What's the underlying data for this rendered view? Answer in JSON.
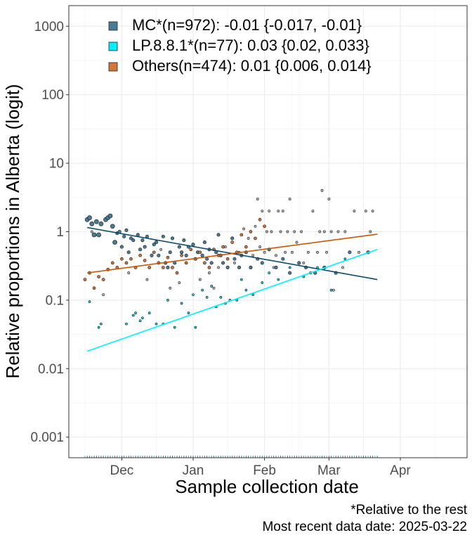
{
  "chart_data": {
    "type": "scatter",
    "title": "",
    "xlabel": "Sample collection date",
    "ylabel": "Relative proportions in Alberta (logit)",
    "y_scale": "log",
    "ylim": [
      0.0005,
      2000
    ],
    "xlim": [
      "2024-11-08",
      "2025-04-30"
    ],
    "grid": true,
    "legend_position": "top-left",
    "x_ticks": [
      {
        "date": "2024-12-01",
        "label": "Dec"
      },
      {
        "date": "2025-01-01",
        "label": "Jan"
      },
      {
        "date": "2025-02-01",
        "label": "Feb"
      },
      {
        "date": "2025-03-01",
        "label": "Mar"
      },
      {
        "date": "2025-04-01",
        "label": "Apr"
      }
    ],
    "y_ticks": [
      {
        "value": 0.001,
        "label": "0.001"
      },
      {
        "value": 0.01,
        "label": "0.01"
      },
      {
        "value": 0.1,
        "label": "0.1"
      },
      {
        "value": 1,
        "label": "1"
      },
      {
        "value": 10,
        "label": "10"
      },
      {
        "value": 100,
        "label": "100"
      },
      {
        "value": 1000,
        "label": "1000"
      }
    ],
    "series": [
      {
        "name": "MC*(n=972): -0.01 {-0.017, -0.01}",
        "color": "#4a7d96",
        "line_color": "#0d4b6e",
        "trend": [
          [
            "2024-11-16",
            1.15
          ],
          [
            "2025-03-22",
            0.2
          ]
        ],
        "points": [
          [
            "2024-11-16",
            1.5
          ],
          [
            "2024-11-17",
            1.6
          ],
          [
            "2024-11-18",
            1.3
          ],
          [
            "2024-11-19",
            0.9
          ],
          [
            "2024-11-20",
            1.4
          ],
          [
            "2024-11-21",
            0.9
          ],
          [
            "2024-11-22",
            1.3
          ],
          [
            "2024-11-24",
            1.5
          ],
          [
            "2024-11-25",
            1.6
          ],
          [
            "2024-11-26",
            1.7
          ],
          [
            "2024-11-27",
            1.2
          ],
          [
            "2024-11-28",
            0.7
          ],
          [
            "2024-11-29",
            0.95
          ],
          [
            "2024-11-30",
            1.0
          ],
          [
            "2024-12-01",
            0.6
          ],
          [
            "2024-12-02",
            0.85
          ],
          [
            "2024-12-03",
            1.05
          ],
          [
            "2024-12-04",
            0.5
          ],
          [
            "2024-12-05",
            0.8
          ],
          [
            "2024-12-06",
            0.75
          ],
          [
            "2024-12-08",
            0.9
          ],
          [
            "2024-12-09",
            0.55
          ],
          [
            "2024-12-10",
            0.75
          ],
          [
            "2024-12-11",
            0.6
          ],
          [
            "2024-12-12",
            0.85
          ],
          [
            "2024-12-14",
            0.45
          ],
          [
            "2024-12-15",
            0.65
          ],
          [
            "2024-12-16",
            0.7
          ],
          [
            "2024-12-17",
            0.45
          ],
          [
            "2024-12-19",
            0.85
          ],
          [
            "2024-12-20",
            0.35
          ],
          [
            "2024-12-21",
            0.3
          ],
          [
            "2024-12-22",
            0.5
          ],
          [
            "2024-12-23",
            0.8
          ],
          [
            "2024-12-24",
            0.35
          ],
          [
            "2024-12-26",
            0.6
          ],
          [
            "2024-12-27",
            0.5
          ],
          [
            "2024-12-28",
            0.75
          ],
          [
            "2024-12-29",
            0.45
          ],
          [
            "2024-12-30",
            0.6
          ],
          [
            "2025-01-01",
            0.65
          ],
          [
            "2025-01-02",
            0.4
          ],
          [
            "2025-01-03",
            0.5
          ],
          [
            "2025-01-05",
            0.45
          ],
          [
            "2025-01-06",
            0.7
          ],
          [
            "2025-01-07",
            0.4
          ],
          [
            "2025-01-08",
            0.55
          ],
          [
            "2025-01-09",
            0.35
          ],
          [
            "2025-01-11",
            0.5
          ],
          [
            "2025-01-12",
            0.9
          ],
          [
            "2025-01-13",
            0.45
          ],
          [
            "2025-01-14",
            0.35
          ],
          [
            "2025-01-16",
            0.3
          ],
          [
            "2025-01-18",
            0.8
          ],
          [
            "2025-01-19",
            0.4
          ],
          [
            "2025-01-21",
            0.3
          ],
          [
            "2025-01-22",
            0.45
          ],
          [
            "2025-01-24",
            0.5
          ],
          [
            "2025-01-26",
            0.3
          ],
          [
            "2025-01-29",
            0.4
          ],
          [
            "2025-01-31",
            0.35
          ],
          [
            "2025-02-03",
            0.55
          ],
          [
            "2025-02-06",
            0.3
          ],
          [
            "2025-02-09",
            0.4
          ],
          [
            "2025-02-12",
            0.25
          ],
          [
            "2025-02-16",
            0.35
          ],
          [
            "2025-02-19",
            0.3
          ],
          [
            "2025-02-23",
            0.25
          ],
          [
            "2025-02-27",
            0.3
          ],
          [
            "2025-03-04",
            0.25
          ],
          [
            "2025-03-10",
            0.5
          ],
          [
            "2025-03-18",
            0.5
          ]
        ]
      },
      {
        "name": "LP.8.8.1*(n=77): 0.03 {0.02, 0.033}",
        "color": "#00f0ff",
        "line_color": "#00f0ff",
        "trend": [
          [
            "2024-11-16",
            0.018
          ],
          [
            "2025-03-22",
            0.55
          ]
        ],
        "points": [
          [
            "2024-11-17",
            0.095
          ],
          [
            "2024-11-21",
            0.04
          ],
          [
            "2024-11-22",
            0.045
          ],
          [
            "2024-12-03",
            0.045
          ],
          [
            "2024-12-06",
            0.06
          ],
          [
            "2024-12-07",
            0.065
          ],
          [
            "2024-12-09",
            0.05
          ],
          [
            "2024-12-10",
            0.055
          ],
          [
            "2024-12-13",
            0.065
          ],
          [
            "2024-12-16",
            0.045
          ],
          [
            "2024-12-19",
            0.045
          ],
          [
            "2024-12-21",
            0.1
          ],
          [
            "2024-12-24",
            0.04
          ],
          [
            "2024-12-27",
            0.09
          ],
          [
            "2024-12-30",
            0.065
          ],
          [
            "2025-01-01",
            0.12
          ],
          [
            "2025-01-02",
            0.04
          ],
          [
            "2025-01-05",
            0.14
          ],
          [
            "2025-01-07",
            0.11
          ],
          [
            "2025-01-09",
            0.16
          ],
          [
            "2025-01-11",
            0.08
          ],
          [
            "2025-01-13",
            0.11
          ],
          [
            "2025-01-15",
            0.09
          ],
          [
            "2025-01-17",
            0.1
          ],
          [
            "2025-01-20",
            0.1
          ],
          [
            "2025-01-22",
            0.2
          ],
          [
            "2025-01-24",
            0.14
          ],
          [
            "2025-01-27",
            0.12
          ],
          [
            "2025-01-31",
            0.18
          ],
          [
            "2025-02-03",
            0.25
          ],
          [
            "2025-02-07",
            0.2
          ],
          [
            "2025-02-12",
            0.3
          ],
          [
            "2025-02-18",
            0.22
          ],
          [
            "2025-02-24",
            0.3
          ],
          [
            "2025-03-02",
            0.14
          ],
          [
            "2025-03-08",
            0.4
          ]
        ]
      },
      {
        "name": "Others(n=474): 0.01 {0.006, 0.014}",
        "color": "#d6773a",
        "line_color": "#cc5500",
        "trend": [
          [
            "2024-11-16",
            0.25
          ],
          [
            "2025-03-22",
            0.92
          ]
        ],
        "points": [
          [
            "2024-11-15",
            0.2
          ],
          [
            "2024-11-17",
            0.25
          ],
          [
            "2024-11-19",
            0.15
          ],
          [
            "2024-11-21",
            0.22
          ],
          [
            "2024-11-23",
            0.2
          ],
          [
            "2024-11-25",
            0.28
          ],
          [
            "2024-11-27",
            0.35
          ],
          [
            "2024-11-29",
            0.3
          ],
          [
            "2024-12-01",
            0.4
          ],
          [
            "2024-12-03",
            0.35
          ],
          [
            "2024-12-05",
            0.4
          ],
          [
            "2024-12-07",
            0.3
          ],
          [
            "2024-12-09",
            0.45
          ],
          [
            "2024-12-11",
            0.38
          ],
          [
            "2024-12-13",
            0.3
          ],
          [
            "2024-12-15",
            0.5
          ],
          [
            "2024-12-17",
            0.35
          ],
          [
            "2024-12-19",
            0.3
          ],
          [
            "2024-12-21",
            0.42
          ],
          [
            "2024-12-23",
            0.3
          ],
          [
            "2024-12-25",
            0.25
          ],
          [
            "2024-12-27",
            0.45
          ],
          [
            "2024-12-29",
            0.35
          ],
          [
            "2024-12-31",
            0.55
          ],
          [
            "2025-01-02",
            0.4
          ],
          [
            "2025-01-04",
            0.5
          ],
          [
            "2025-01-06",
            0.35
          ],
          [
            "2025-01-08",
            0.3
          ],
          [
            "2025-01-10",
            0.55
          ],
          [
            "2025-01-12",
            0.45
          ],
          [
            "2025-01-14",
            0.6
          ],
          [
            "2025-01-16",
            0.4
          ],
          [
            "2025-01-18",
            0.7
          ],
          [
            "2025-01-20",
            0.5
          ],
          [
            "2025-01-22",
            0.9
          ],
          [
            "2025-01-24",
            0.6
          ],
          [
            "2025-01-26",
            1.0
          ],
          [
            "2025-01-28",
            0.8
          ],
          [
            "2025-01-30",
            1.5
          ],
          [
            "2025-02-01",
            1.2
          ]
        ]
      }
    ],
    "background_points": [
      [
        "2024-11-18",
        1.0
      ],
      [
        "2024-11-23",
        0.12
      ],
      [
        "2024-12-04",
        0.25
      ],
      [
        "2024-12-12",
        0.2
      ],
      [
        "2024-12-18",
        0.55
      ],
      [
        "2024-12-22",
        0.15
      ],
      [
        "2024-12-26",
        0.18
      ],
      [
        "2025-01-04",
        0.2
      ],
      [
        "2025-01-08",
        0.25
      ],
      [
        "2025-01-10",
        0.15
      ],
      [
        "2025-01-12",
        0.3
      ],
      [
        "2025-01-15",
        0.6
      ],
      [
        "2025-01-19",
        0.35
      ],
      [
        "2025-01-21",
        0.5
      ],
      [
        "2025-01-23",
        1.1
      ],
      [
        "2025-01-25",
        0.8
      ],
      [
        "2025-01-27",
        0.45
      ],
      [
        "2025-01-28",
        1.2
      ],
      [
        "2025-01-29",
        3.0
      ],
      [
        "2025-01-30",
        0.6
      ],
      [
        "2025-01-31",
        2.0
      ],
      [
        "2025-02-01",
        0.5
      ],
      [
        "2025-02-02",
        1.0
      ],
      [
        "2025-02-03",
        2.0
      ],
      [
        "2025-02-04",
        1.0
      ],
      [
        "2025-02-05",
        0.3
      ],
      [
        "2025-02-06",
        0.45
      ],
      [
        "2025-02-07",
        2.0
      ],
      [
        "2025-02-08",
        1.0
      ],
      [
        "2025-02-09",
        2.0
      ],
      [
        "2025-02-10",
        0.5
      ],
      [
        "2025-02-11",
        1.0
      ],
      [
        "2025-02-12",
        3.0
      ],
      [
        "2025-02-13",
        0.5
      ],
      [
        "2025-02-14",
        1.0
      ],
      [
        "2025-02-15",
        0.7
      ],
      [
        "2025-02-17",
        1.0
      ],
      [
        "2025-02-18",
        0.35
      ],
      [
        "2025-02-20",
        0.5
      ],
      [
        "2025-02-21",
        0.25
      ],
      [
        "2025-02-22",
        2.0
      ],
      [
        "2025-02-24",
        0.5
      ],
      [
        "2025-02-25",
        1.0
      ],
      [
        "2025-02-26",
        4.0
      ],
      [
        "2025-02-27",
        1.0
      ],
      [
        "2025-02-28",
        0.5
      ],
      [
        "2025-03-01",
        3.0
      ],
      [
        "2025-03-02",
        1.0
      ],
      [
        "2025-03-03",
        0.14
      ],
      [
        "2025-03-05",
        1.0
      ],
      [
        "2025-03-07",
        0.3
      ],
      [
        "2025-03-08",
        1.0
      ],
      [
        "2025-03-12",
        2.0
      ],
      [
        "2025-03-14",
        0.5
      ],
      [
        "2025-03-17",
        2.0
      ],
      [
        "2025-03-19",
        1.0
      ],
      [
        "2025-03-20",
        2.0
      ]
    ],
    "caption_lines": [
      "*Relative to the rest",
      "Most recent data date: 2025-03-22"
    ]
  }
}
